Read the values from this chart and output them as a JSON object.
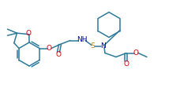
{
  "bg_color": "#ffffff",
  "line_color": "#2d7a9a",
  "atom_colors": {
    "O": "#cc0000",
    "N": "#0000cc",
    "S": "#cc8800"
  },
  "figsize": [
    2.47,
    1.12
  ],
  "dpi": 100,
  "lw": 1.1
}
